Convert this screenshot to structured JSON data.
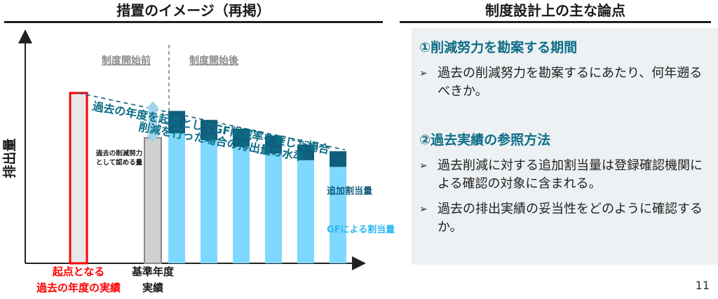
{
  "headings": {
    "left": "措置のイメージ（再掲）",
    "right": "制度設計上の主な論点"
  },
  "chart_data": {
    "type": "bar",
    "title": "措置のイメージ（再掲）",
    "ylabel": "排出量",
    "xlabel": "",
    "phases": {
      "before": "制度開始前",
      "after": "制度開始後"
    },
    "categories": [
      "起点となる過去の年度の実績",
      "基準年度実績",
      "",
      "",
      "",
      "",
      ""
    ],
    "category_labels": [
      {
        "lines": [
          "起点となる",
          "過去の年度の実績"
        ],
        "color": "#ff0000"
      },
      {
        "lines": [
          "基準年度",
          "実績"
        ],
        "color": "#1a1a1a"
      }
    ],
    "ylim": [
      0,
      100
    ],
    "start_bar_value": 76,
    "base_year_value": 56,
    "gf_values": [
      58,
      55,
      52,
      49,
      46,
      43
    ],
    "additional_values": [
      10,
      9,
      8,
      8,
      7,
      7
    ],
    "series": [
      {
        "name": "GFによる割当量",
        "color": "#7fd8ff"
      },
      {
        "name": "追加割当量",
        "color": "#0f5e7d"
      }
    ],
    "trend_label": [
      "過去の年度を起点としてGF削減率を乗じた場合",
      "削減を行った場合の排出量の水準"
    ],
    "reduction_label": [
      "過去の削減努力",
      "として認める量"
    ],
    "legend_additional": "追加割当量",
    "legend_gf": "GFによる割当量"
  },
  "panel": {
    "section1": {
      "title": "①削減努力を勘案する期間",
      "items": [
        "過去の削減努力を勘案するにあたり、何年遡るべきか。"
      ]
    },
    "section2": {
      "title": "②過去実績の参照方法",
      "items": [
        "過去削減に対する追加割当量は登録確認機関による確認の対象に含まれる。",
        "過去の排出実績の妥当性をどのように確認するか。"
      ]
    },
    "bullet": "➢"
  },
  "page_number": "11"
}
